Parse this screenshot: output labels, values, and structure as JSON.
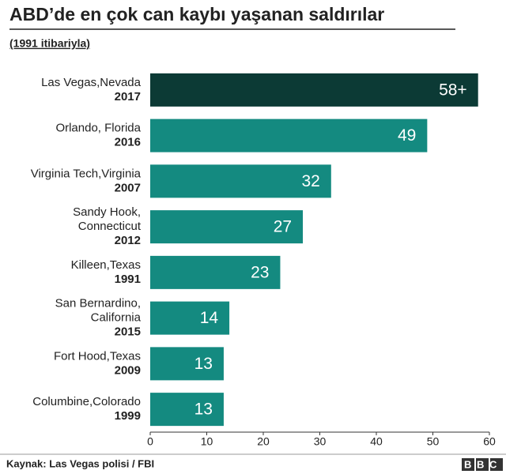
{
  "chart_data": {
    "type": "bar",
    "orientation": "horizontal",
    "title": "ABD’de en çok can kaybı yaşanan saldırılar",
    "subtitle": "(1991 itibariyla)",
    "categories": [
      [
        "Las Vegas,Nevada"
      ],
      [
        "Orlando, Florida"
      ],
      [
        "Virginia Tech,Virginia"
      ],
      [
        "Sandy Hook,",
        "Connecticut"
      ],
      [
        "Killeen,Texas"
      ],
      [
        "San Bernardino,",
        "California"
      ],
      [
        "Fort Hood,Texas"
      ],
      [
        "Columbine,Colorado"
      ]
    ],
    "years": [
      "2017",
      "2016",
      "2007",
      "2012",
      "1991",
      "2015",
      "2009",
      "1999"
    ],
    "values": [
      58,
      49,
      32,
      27,
      23,
      14,
      13,
      13
    ],
    "value_labels": [
      "58+",
      "49",
      "32",
      "27",
      "23",
      "14",
      "13",
      "13"
    ],
    "colors": [
      "#0c3a35",
      "#148a80",
      "#148a80",
      "#148a80",
      "#148a80",
      "#148a80",
      "#148a80",
      "#148a80"
    ],
    "xlim": [
      0,
      60
    ],
    "xticks": [
      0,
      10,
      20,
      30,
      40,
      50,
      60
    ],
    "source": "Kaynak: Las Vegas polisi / FBI",
    "logo": "BBC"
  }
}
